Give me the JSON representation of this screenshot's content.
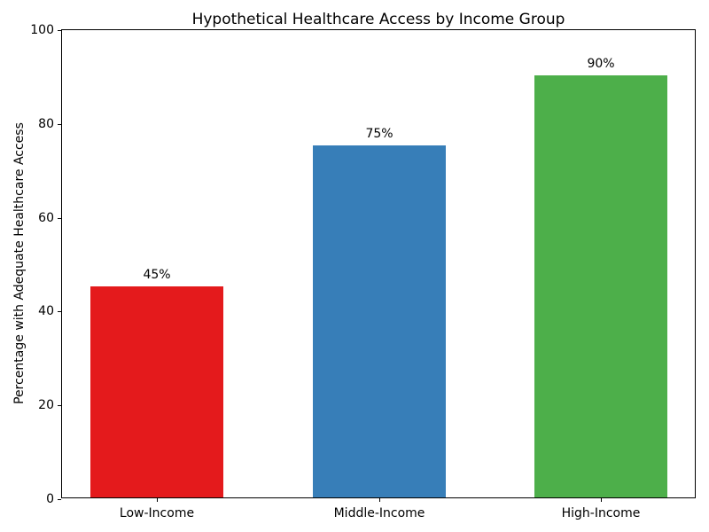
{
  "chart_data": {
    "type": "bar",
    "title": "Hypothetical Healthcare Access by Income Group",
    "xlabel": "",
    "ylabel": "Percentage with Adequate Healthcare Access",
    "categories": [
      "Low-Income",
      "Middle-Income",
      "High-Income"
    ],
    "values": [
      45,
      75,
      90
    ],
    "bar_labels": [
      "45%",
      "75%",
      "90%"
    ],
    "bar_colors": [
      "#e41a1c",
      "#377eb8",
      "#4daf4a"
    ],
    "ylim": [
      0,
      100
    ],
    "yticks": [
      0,
      20,
      40,
      60,
      80,
      100
    ],
    "ytick_labels": [
      "0",
      "20",
      "40",
      "60",
      "80",
      "100"
    ],
    "grid": false,
    "legend_position": "none",
    "background_color": "#ffffff",
    "spine_color": "#000000"
  }
}
